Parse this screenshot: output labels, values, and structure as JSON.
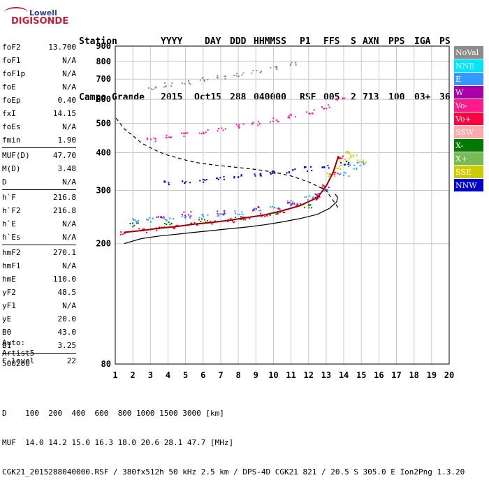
{
  "logo": {
    "line1": "Lowell",
    "line2": "DIGISONDE"
  },
  "header": {
    "labels": [
      "Station",
      "YYYY",
      "DAY",
      "DDD",
      "HHMMSS",
      "P1",
      "FFS",
      "S",
      "AXN",
      "PPS",
      "IGA",
      "PS"
    ],
    "values": [
      "Campo Grande",
      "2015",
      "Oct15",
      "288",
      "040000",
      "RSF",
      "005",
      "2",
      "713",
      "100",
      "03+",
      "36"
    ]
  },
  "params": {
    "group1": [
      {
        "k": "foF2",
        "v": "13.700"
      },
      {
        "k": "foF1",
        "v": "N/A"
      },
      {
        "k": "foF1p",
        "v": "N/A"
      },
      {
        "k": "foE",
        "v": "N/A"
      },
      {
        "k": "foEp",
        "v": "0.40"
      },
      {
        "k": "fxI",
        "v": "14.15"
      },
      {
        "k": "foEs",
        "v": "N/A"
      },
      {
        "k": "fmin",
        "v": "1.90"
      }
    ],
    "group2": [
      {
        "k": "MUF(D)",
        "v": "47.70"
      },
      {
        "k": "M(D)",
        "v": "3.48"
      },
      {
        "k": "D",
        "v": "N/A"
      }
    ],
    "group3": [
      {
        "k": "h`F",
        "v": "216.8"
      },
      {
        "k": "h`F2",
        "v": "216.8"
      },
      {
        "k": "h`E",
        "v": "N/A"
      },
      {
        "k": "h`Es",
        "v": "N/A"
      }
    ],
    "group4": [
      {
        "k": "hmF2",
        "v": "270.1"
      },
      {
        "k": "hmF1",
        "v": "N/A"
      },
      {
        "k": "hmE",
        "v": "110.0"
      },
      {
        "k": "yF2",
        "v": "48.5"
      },
      {
        "k": "yF1",
        "v": "N/A"
      },
      {
        "k": "yE",
        "v": "20.0"
      },
      {
        "k": "B0",
        "v": "43.0"
      },
      {
        "k": "B1",
        "v": "3.25"
      }
    ],
    "group5": [
      {
        "k": "C-level",
        "v": "22"
      }
    ]
  },
  "auto": {
    "line1": "Auto:",
    "line2": "Artist5",
    "line3": "500200"
  },
  "footer": {
    "line1": "D    100  200  400  600  800 1000 1500 3000 [km]",
    "line2": "MUF  14.0 14.2 15.0 16.3 18.0 20.6 28.1 47.7 [MHz]",
    "line3": "CGK21_2015288040000.RSF / 380fx512h 50 kHz 2.5 km / DPS-4D CGK21 821 / 20.5 S 305.0 E Ion2Png 1.3.20"
  },
  "legend": [
    {
      "label": "NoVal",
      "color": "#8c8c8c"
    },
    {
      "label": "NNE",
      "color": "#00e5ff"
    },
    {
      "label": "E",
      "color": "#3399ff"
    },
    {
      "label": "W",
      "color": "#aa00aa"
    },
    {
      "label": "Vo-",
      "color": "#ff1a8c"
    },
    {
      "label": "Vo+",
      "color": "#ff0040"
    },
    {
      "label": "SSW",
      "color": "#ffaaaa"
    },
    {
      "label": "X-",
      "color": "#007a00"
    },
    {
      "label": "X+",
      "color": "#77bb55"
    },
    {
      "label": "SSE",
      "color": "#cccc00"
    },
    {
      "label": "NNW",
      "color": "#0000cc"
    }
  ],
  "chart_data": {
    "type": "scatter",
    "xlabel": "",
    "ylabel": "",
    "x_ticks": [
      "1",
      "2",
      "3",
      "4",
      "5",
      "6",
      "7",
      "8",
      "9",
      "10",
      "11",
      "12",
      "13",
      "14",
      "15",
      "16",
      "17",
      "18",
      "19",
      "20"
    ],
    "y_ticks": [
      "80",
      "200",
      "300",
      "400",
      "500",
      "600",
      "700",
      "800",
      "900"
    ],
    "xlim": [
      1,
      20
    ],
    "ylim": [
      80,
      900
    ],
    "y_scale": "log",
    "grid": true,
    "series": [
      {
        "name": "Vo+",
        "color": "#ff0040",
        "x": [
          1.5,
          2.5,
          3.5,
          4.5,
          5.5,
          6.5,
          7.5,
          8.5,
          9.5,
          10.5,
          11.5,
          12.5,
          13.0,
          13.4,
          13.7
        ],
        "y": [
          218,
          222,
          226,
          229,
          233,
          236,
          240,
          245,
          250,
          258,
          268,
          285,
          310,
          345,
          390
        ]
      },
      {
        "name": "E",
        "color": "#3399ff",
        "x": [
          2.0,
          3.0,
          4.0,
          5.0,
          6.0,
          7.0,
          8.0,
          9.0,
          10.0,
          11.0,
          12.0,
          13.0,
          14.0,
          14.5,
          15.0
        ],
        "y": [
          240,
          241,
          243,
          245,
          247,
          250,
          255,
          260,
          265,
          275,
          285,
          300,
          340,
          360,
          370
        ]
      },
      {
        "name": "NNW",
        "color": "#0000cc",
        "x": [
          4,
          5,
          6,
          7,
          8,
          9,
          10,
          11,
          12,
          13,
          14
        ],
        "y": [
          320,
          322,
          325,
          330,
          335,
          340,
          345,
          350,
          355,
          360,
          370
        ]
      },
      {
        "name": "SSE",
        "color": "#cccc00",
        "x": [
          13.2,
          13.6,
          14.0,
          14.3,
          14.6,
          15.0
        ],
        "y": [
          340,
          360,
          380,
          400,
          390,
          375
        ]
      },
      {
        "name": "W",
        "color": "#aa00aa",
        "x": [
          3.5,
          5,
          7,
          9,
          11,
          12.5
        ],
        "y": [
          248,
          252,
          255,
          262,
          272,
          290
        ]
      },
      {
        "name": "X-",
        "color": "#007a00",
        "x": [
          2,
          4,
          6,
          8,
          10,
          12
        ],
        "y": [
          232,
          236,
          240,
          244,
          252,
          268
        ]
      },
      {
        "name": "Vo-",
        "color": "#ff1a8c",
        "x": [
          3,
          4,
          5,
          6,
          7,
          8,
          9,
          10,
          11,
          12,
          13,
          13.8
        ],
        "y": [
          442,
          452,
          462,
          472,
          480,
          492,
          502,
          515,
          530,
          548,
          570,
          600
        ]
      },
      {
        "name": "NoVal",
        "color": "#8c8c8c",
        "x": [
          3,
          4,
          5,
          6,
          7,
          8,
          9,
          10,
          11
        ],
        "y": [
          660,
          672,
          688,
          700,
          712,
          728,
          745,
          765,
          790
        ]
      }
    ],
    "curves": [
      {
        "name": "profile-solid-black",
        "style": "solid",
        "color": "#000000",
        "x": [
          1.5,
          2.5,
          3.5,
          4.5,
          5.5,
          6.5,
          7.5,
          8.5,
          9.5,
          10.5,
          11.5,
          12.5,
          13.2,
          13.6,
          13.65,
          13.5
        ],
        "y": [
          200,
          208,
          212,
          215,
          218,
          221,
          224,
          227,
          231,
          236,
          242,
          250,
          262,
          275,
          285,
          292
        ]
      },
      {
        "name": "profile-dashed-black",
        "style": "dashed",
        "color": "#000000",
        "x": [
          1.05,
          1.5,
          2.0,
          2.5,
          3.0,
          3.5,
          4.0,
          4.5,
          5.0,
          5.5,
          6.0,
          7.0,
          8.0,
          9.0,
          10.0,
          11.0,
          12.0,
          13.0,
          13.7
        ],
        "y": [
          520,
          480,
          455,
          430,
          415,
          402,
          392,
          385,
          378,
          372,
          368,
          362,
          357,
          352,
          345,
          335,
          320,
          300,
          262
        ]
      },
      {
        "name": "trace-dark-red",
        "style": "solid",
        "color": "#990000",
        "x": [
          1.5,
          2.5,
          3.5,
          4.5,
          5.5,
          6.5,
          7.5,
          8.5,
          9.5,
          10.5,
          11.5,
          12.5,
          13.0,
          13.4,
          13.7
        ],
        "y": [
          218,
          221,
          225,
          228,
          232,
          235,
          239,
          244,
          249,
          257,
          267,
          284,
          310,
          345,
          390
        ]
      }
    ]
  }
}
